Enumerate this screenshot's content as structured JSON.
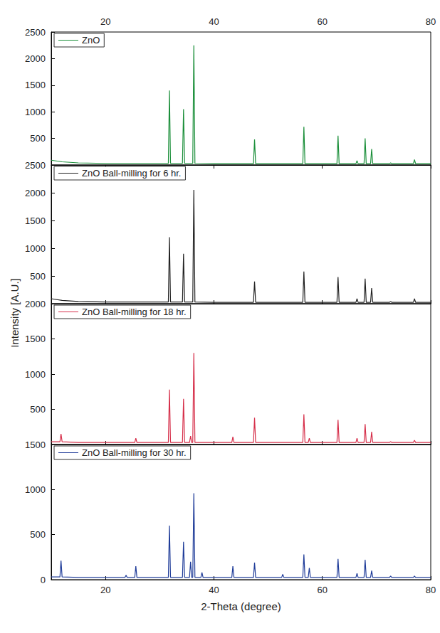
{
  "xlabel": "2-Theta (degree)",
  "ylabel": "Intensity [A.U.]",
  "chart_data": [
    {
      "type": "line",
      "xlim": [
        10,
        80
      ],
      "xticks": [
        20,
        40,
        60,
        80
      ],
      "ylim": [
        0,
        2500
      ],
      "yticks": [
        500,
        1000,
        1500,
        2000,
        2500
      ],
      "grid": false,
      "legend": "upper left",
      "marker": "none",
      "series": [
        {
          "name": "ZnO",
          "color": "#1b8f3a",
          "x": [
            10,
            12,
            15,
            20,
            25,
            30,
            31.6,
            31.8,
            32.0,
            34.2,
            34.4,
            34.6,
            36.1,
            36.3,
            36.5,
            40,
            47.3,
            47.5,
            47.7,
            52,
            56.4,
            56.6,
            56.8,
            60,
            62.7,
            62.9,
            63.1,
            66.2,
            66.4,
            66.6,
            67.7,
            67.9,
            68.1,
            68.9,
            69.1,
            69.3,
            72.4,
            72.6,
            72.8,
            76.8,
            77.0,
            77.2,
            80
          ],
          "values": [
            90,
            60,
            40,
            30,
            30,
            30,
            30,
            1400,
            30,
            30,
            1050,
            30,
            30,
            2250,
            30,
            25,
            25,
            480,
            25,
            25,
            25,
            720,
            25,
            25,
            25,
            550,
            25,
            25,
            80,
            25,
            25,
            500,
            25,
            25,
            300,
            25,
            25,
            40,
            25,
            25,
            100,
            25,
            25
          ]
        }
      ]
    },
    {
      "type": "line",
      "xlim": [
        10,
        80
      ],
      "xticks": [
        20,
        40,
        60,
        80
      ],
      "ylim": [
        0,
        2500
      ],
      "yticks": [
        500,
        1000,
        1500,
        2000,
        2500
      ],
      "grid": false,
      "legend": "upper left",
      "marker": "none",
      "tick_labels": "y",
      "series": [
        {
          "name": "ZnO Ball-milling for 6 hr.",
          "color": "#222222",
          "x": [
            10,
            12,
            15,
            20,
            25,
            30,
            31.6,
            31.8,
            32.0,
            34.2,
            34.4,
            34.6,
            36.1,
            36.3,
            36.5,
            40,
            47.3,
            47.5,
            47.7,
            52,
            56.4,
            56.6,
            56.8,
            60,
            62.7,
            62.9,
            63.1,
            66.2,
            66.4,
            66.6,
            67.7,
            67.9,
            68.1,
            68.9,
            69.1,
            69.3,
            72.4,
            72.6,
            72.8,
            76.8,
            77.0,
            77.2,
            80
          ],
          "values": [
            90,
            60,
            40,
            30,
            30,
            30,
            30,
            1200,
            30,
            30,
            900,
            30,
            30,
            2050,
            30,
            25,
            25,
            400,
            25,
            25,
            25,
            580,
            25,
            25,
            25,
            480,
            25,
            25,
            90,
            25,
            25,
            450,
            25,
            25,
            280,
            25,
            25,
            40,
            25,
            25,
            90,
            25,
            25
          ]
        }
      ]
    },
    {
      "type": "line",
      "xlim": [
        10,
        80
      ],
      "xticks": [
        20,
        40,
        60,
        80
      ],
      "ylim": [
        0,
        2000
      ],
      "yticks": [
        500,
        1000,
        1500,
        2000
      ],
      "grid": false,
      "legend": "upper left",
      "marker": "none",
      "tick_labels": "y",
      "series": [
        {
          "name": "ZnO Ball-milling for 18 hr.",
          "color": "#d62f4a",
          "x": [
            10,
            11.6,
            11.8,
            12.0,
            15,
            20,
            25.4,
            25.6,
            25.8,
            30,
            31.6,
            31.8,
            32.0,
            34.2,
            34.4,
            34.6,
            35.5,
            35.7,
            35.9,
            36.1,
            36.3,
            36.5,
            40,
            43.3,
            43.5,
            43.7,
            47.3,
            47.5,
            47.7,
            52,
            56.4,
            56.6,
            56.8,
            57.4,
            57.6,
            57.8,
            60,
            62.7,
            62.9,
            63.1,
            66.2,
            66.4,
            66.6,
            67.7,
            67.9,
            68.1,
            68.9,
            69.1,
            69.3,
            72.4,
            72.6,
            72.8,
            76.8,
            77.0,
            77.2,
            80
          ],
          "values": [
            40,
            40,
            150,
            40,
            30,
            30,
            30,
            90,
            30,
            30,
            30,
            780,
            30,
            30,
            650,
            30,
            30,
            120,
            30,
            30,
            1300,
            30,
            30,
            30,
            110,
            30,
            30,
            380,
            30,
            30,
            30,
            430,
            30,
            30,
            90,
            30,
            30,
            30,
            350,
            30,
            30,
            90,
            30,
            30,
            290,
            30,
            30,
            180,
            30,
            30,
            40,
            30,
            30,
            60,
            30,
            30
          ]
        }
      ]
    },
    {
      "type": "line",
      "xlim": [
        10,
        80
      ],
      "xticks": [
        20,
        40,
        60,
        80
      ],
      "ylim": [
        0,
        1500
      ],
      "yticks": [
        0,
        500,
        1000,
        1500
      ],
      "grid": false,
      "legend": "upper left",
      "marker": "none",
      "series": [
        {
          "name": "ZnO Ball-milling for 30 hr.",
          "color": "#1f3c99",
          "x": [
            10,
            11.6,
            11.8,
            12.0,
            15,
            20,
            23.6,
            23.8,
            24.0,
            25.4,
            25.6,
            25.8,
            30,
            31.6,
            31.8,
            32.0,
            34.2,
            34.4,
            34.6,
            35.5,
            35.7,
            35.9,
            36.1,
            36.3,
            36.5,
            37.6,
            37.8,
            38.0,
            40,
            43.3,
            43.5,
            43.7,
            47.3,
            47.5,
            47.7,
            52.5,
            52.7,
            52.9,
            56.4,
            56.6,
            56.8,
            57.4,
            57.6,
            57.8,
            60,
            62.7,
            62.9,
            63.1,
            66.2,
            66.4,
            66.6,
            67.7,
            67.9,
            68.1,
            68.9,
            69.1,
            69.3,
            72.4,
            72.6,
            72.8,
            76.8,
            77.0,
            77.2,
            80
          ],
          "values": [
            30,
            30,
            210,
            30,
            25,
            25,
            25,
            50,
            25,
            25,
            150,
            25,
            25,
            25,
            600,
            25,
            25,
            420,
            25,
            25,
            200,
            25,
            25,
            960,
            25,
            25,
            80,
            25,
            25,
            25,
            150,
            25,
            25,
            190,
            25,
            25,
            60,
            25,
            25,
            280,
            25,
            25,
            130,
            25,
            25,
            25,
            230,
            25,
            25,
            70,
            25,
            25,
            220,
            25,
            25,
            100,
            25,
            25,
            40,
            25,
            25,
            40,
            25,
            25
          ]
        }
      ]
    }
  ]
}
